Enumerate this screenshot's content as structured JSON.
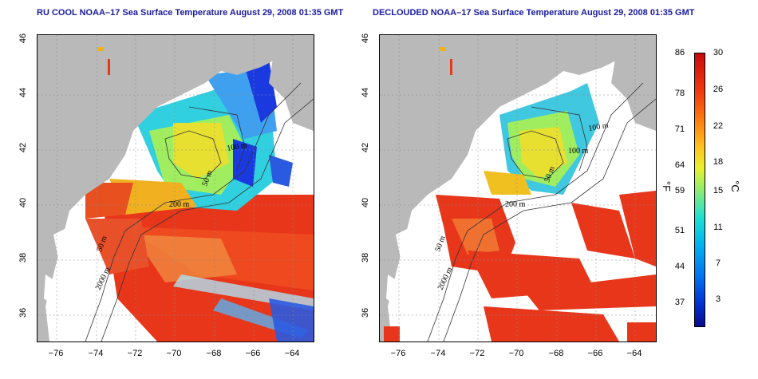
{
  "titles": {
    "left": "RU COOL NOAA–17 Sea Surface Temperature August 29, 2008 01:35 GMT",
    "right": "DECLOUDED NOAA–17 Sea Surface Temperature August 29, 2008 01:35 GMT"
  },
  "axes": {
    "y_ticks": [
      "46",
      "44",
      "42",
      "40",
      "38",
      "36"
    ],
    "x_ticks": [
      "−76",
      "−74",
      "−72",
      "−70",
      "−68",
      "−66",
      "−64"
    ],
    "lon_range": [
      -77,
      -63
    ],
    "lat_range": [
      35,
      46
    ]
  },
  "contour_labels": {
    "left": [
      "100 m",
      "50 m",
      "200 m",
      "50 m",
      "2000 m"
    ],
    "right": [
      "100 m",
      "100 m",
      "50 m",
      "200 m",
      "50 m",
      "2000 m"
    ]
  },
  "colorbar": {
    "fahrenheit_ticks": [
      "86",
      "78",
      "71",
      "64",
      "59",
      "51",
      "44",
      "37"
    ],
    "celsius_ticks": [
      "30",
      "26",
      "22",
      "18",
      "15",
      "11",
      "7",
      "3"
    ],
    "fahrenheit_unit": "°F",
    "celsius_unit": "°C"
  },
  "colors": {
    "land": "#b9b9b9",
    "title": "#1a1aa0",
    "warm": "#e8361a",
    "cold": "#1a3ae0"
  }
}
